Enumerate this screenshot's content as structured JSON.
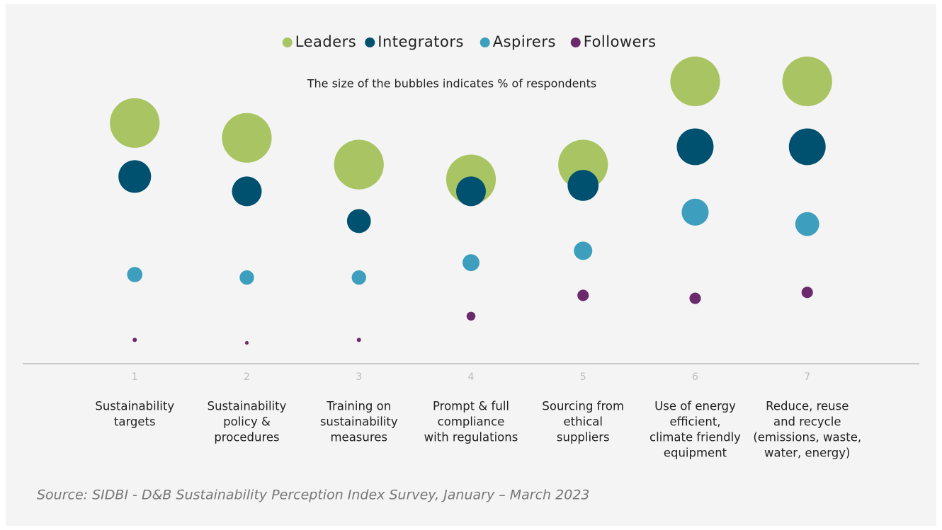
{
  "chart_data": {
    "type": "bubble",
    "title": "The size of the bubbles indicates % of respondents",
    "source": "Source: SIDBI - D&B Sustainability Perception Index Survey, January – March 2023",
    "x": [
      1,
      2,
      3,
      4,
      5,
      6,
      7
    ],
    "xlim": [
      0,
      8
    ],
    "xticks": [
      1,
      2,
      3,
      4,
      5,
      6,
      7
    ],
    "ylim": [
      0,
      100
    ],
    "categories": [
      [
        "Sustainability",
        "targets"
      ],
      [
        "Sustainability",
        "policy &",
        "procedures"
      ],
      [
        "Training on",
        "sustainability",
        "measures"
      ],
      [
        "Prompt & full",
        "compliance",
        "with regulations"
      ],
      [
        "Sourcing from",
        "ethical",
        "suppliers"
      ],
      [
        "Use of energy",
        "efficient,",
        "climate friendly",
        "equipment"
      ],
      [
        "Reduce, reuse",
        "and recycle",
        "(emissions, waste,",
        "water, energy)"
      ]
    ],
    "legend": "top",
    "series": [
      {
        "name": "Leaders",
        "color": "#a9c462",
        "values": [
          81,
          76,
          67,
          62,
          67,
          95,
          95
        ],
        "sizes": [
          95,
          95,
          95,
          95,
          95,
          95,
          95
        ]
      },
      {
        "name": "Integrators",
        "color": "#00506f",
        "values": [
          63,
          58,
          48,
          58,
          60,
          73,
          73
        ],
        "sizes": [
          41,
          34,
          22,
          34,
          37,
          52,
          52
        ]
      },
      {
        "name": "Aspirers",
        "color": "#3d9ebd",
        "values": [
          30,
          29,
          29,
          34,
          38,
          51,
          47
        ],
        "sizes": [
          9,
          8,
          8,
          11,
          13,
          28,
          22
        ]
      },
      {
        "name": "Followers",
        "color": "#6b2a6b",
        "values": [
          8,
          7,
          8,
          16,
          23,
          22,
          24
        ],
        "sizes": [
          0.7,
          0.5,
          0.7,
          3,
          5,
          5,
          5
        ]
      }
    ]
  }
}
